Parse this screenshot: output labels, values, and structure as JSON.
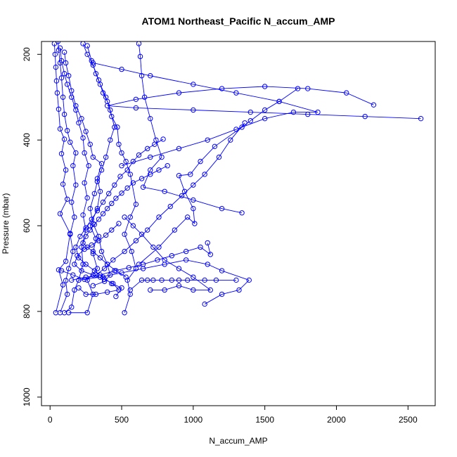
{
  "chart_data": {
    "type": "scatter",
    "title": "ATOM1 Northeast_Pacific N_accum_AMP",
    "xlabel": "N_accum_AMP",
    "ylabel": "Pressure (mbar)",
    "xlim": [
      -60,
      2690
    ],
    "ylim": [
      1020,
      170
    ],
    "y_inverted": true,
    "x_ticks": [
      "0",
      "500",
      "1000",
      "1500",
      "2000",
      "2500"
    ],
    "y_ticks": [
      "200",
      "400",
      "600",
      "800",
      "1000"
    ],
    "grid": false,
    "legend": "none",
    "marker": "open-circle",
    "colors": {
      "series": "#0000ff",
      "axis": "#000000",
      "background": "#ffffff"
    },
    "series": [
      {
        "points": [
          [
            40,
            803
          ],
          [
            90,
            738
          ],
          [
            60,
            703
          ],
          [
            110,
            683
          ],
          [
            140,
            618
          ],
          [
            70,
            572
          ],
          [
            120,
            538
          ],
          [
            90,
            503
          ],
          [
            110,
            470
          ],
          [
            80,
            432
          ],
          [
            100,
            398
          ],
          [
            70,
            374
          ],
          [
            60,
            328
          ],
          [
            50,
            290
          ],
          [
            45,
            262
          ],
          [
            40,
            230
          ],
          [
            35,
            200
          ],
          [
            30,
            175
          ]
        ]
      },
      {
        "points": [
          [
            70,
            803
          ],
          [
            120,
            760
          ],
          [
            110,
            728
          ],
          [
            130,
            700
          ],
          [
            160,
            660
          ],
          [
            140,
            620
          ],
          [
            170,
            580
          ],
          [
            150,
            545
          ],
          [
            180,
            505
          ],
          [
            160,
            460
          ],
          [
            180,
            430
          ],
          [
            140,
            405
          ],
          [
            120,
            378
          ],
          [
            100,
            340
          ],
          [
            90,
            300
          ],
          [
            80,
            255
          ],
          [
            70,
            220
          ],
          [
            60,
            190
          ],
          [
            55,
            170
          ]
        ]
      },
      {
        "points": [
          [
            100,
            803
          ],
          [
            150,
            790
          ],
          [
            170,
            750
          ],
          [
            200,
            727
          ],
          [
            230,
            690
          ],
          [
            220,
            650
          ],
          [
            250,
            610
          ],
          [
            230,
            575
          ],
          [
            260,
            535
          ],
          [
            240,
            500
          ],
          [
            270,
            460
          ],
          [
            240,
            430
          ],
          [
            230,
            395
          ],
          [
            200,
            360
          ],
          [
            180,
            330
          ],
          [
            150,
            300
          ],
          [
            120,
            270
          ],
          [
            100,
            245
          ],
          [
            80,
            215
          ],
          [
            70,
            185
          ]
        ]
      },
      {
        "points": [
          [
            130,
            803
          ],
          [
            260,
            803
          ],
          [
            300,
            760
          ],
          [
            260,
            727
          ],
          [
            330,
            700
          ],
          [
            300,
            665
          ],
          [
            320,
            630
          ],
          [
            280,
            600
          ],
          [
            330,
            560
          ],
          [
            350,
            520
          ],
          [
            330,
            490
          ],
          [
            360,
            455
          ],
          [
            300,
            440
          ],
          [
            280,
            410
          ],
          [
            250,
            380
          ],
          [
            220,
            350
          ],
          [
            180,
            320
          ],
          [
            150,
            285
          ],
          [
            130,
            250
          ],
          [
            110,
            220
          ],
          [
            100,
            195
          ]
        ]
      },
      {
        "points": [
          [
            520,
            803
          ],
          [
            560,
            760
          ],
          [
            540,
            727
          ],
          [
            600,
            700
          ],
          [
            570,
            660
          ],
          [
            520,
            620
          ],
          [
            560,
            580
          ],
          [
            600,
            550
          ],
          [
            560,
            480
          ],
          [
            530,
            450
          ],
          [
            500,
            430
          ],
          [
            480,
            410
          ],
          [
            470,
            370
          ],
          [
            430,
            345
          ],
          [
            400,
            310
          ],
          [
            370,
            290
          ],
          [
            340,
            260
          ],
          [
            300,
            225
          ],
          [
            260,
            200
          ],
          [
            230,
            175
          ]
        ]
      },
      {
        "points": [
          [
            560,
            750
          ],
          [
            640,
            727
          ],
          [
            680,
            727
          ],
          [
            720,
            727
          ],
          [
            780,
            727
          ],
          [
            850,
            727
          ],
          [
            900,
            727
          ],
          [
            960,
            727
          ],
          [
            1080,
            727
          ],
          [
            1160,
            727
          ],
          [
            1300,
            727
          ]
        ]
      },
      {
        "points": [
          [
            1080,
            783
          ],
          [
            1200,
            760
          ],
          [
            1320,
            750
          ],
          [
            1390,
            727
          ],
          [
            1200,
            705
          ],
          [
            1100,
            690
          ],
          [
            950,
            680
          ],
          [
            800,
            690
          ],
          [
            650,
            700
          ],
          [
            500,
            710
          ],
          [
            350,
            720
          ],
          [
            200,
            727
          ]
        ]
      },
      {
        "points": [
          [
            700,
            750
          ],
          [
            800,
            750
          ],
          [
            900,
            740
          ],
          [
            1000,
            750
          ],
          [
            1120,
            750
          ],
          [
            1000,
            720
          ],
          [
            900,
            700
          ],
          [
            800,
            680
          ],
          [
            720,
            650
          ],
          [
            640,
            620
          ],
          [
            580,
            600
          ],
          [
            520,
            580
          ]
        ]
      },
      {
        "points": [
          [
            620,
            690
          ],
          [
            760,
            650
          ],
          [
            870,
            610
          ],
          [
            960,
            580
          ],
          [
            1010,
            595
          ],
          [
            1000,
            560
          ],
          [
            940,
            520
          ],
          [
            900,
            483
          ],
          [
            980,
            480
          ],
          [
            1050,
            450
          ],
          [
            1150,
            415
          ],
          [
            1340,
            370
          ],
          [
            1400,
            355
          ],
          [
            1500,
            330
          ],
          [
            1600,
            310
          ],
          [
            1730,
            280
          ]
        ]
      },
      {
        "points": [
          [
            500,
            460
          ],
          [
            700,
            440
          ],
          [
            900,
            420
          ],
          [
            1100,
            400
          ],
          [
            1300,
            375
          ],
          [
            1500,
            350
          ],
          [
            1700,
            335
          ],
          [
            1870,
            335
          ],
          [
            1600,
            310
          ],
          [
            1300,
            290
          ],
          [
            1000,
            270
          ],
          [
            700,
            250
          ],
          [
            500,
            235
          ],
          [
            300,
            220
          ]
        ]
      },
      {
        "points": [
          [
            2590,
            350
          ],
          [
            2200,
            345
          ],
          [
            1800,
            340
          ],
          [
            1400,
            335
          ],
          [
            1000,
            330
          ],
          [
            600,
            325
          ],
          [
            400,
            320
          ],
          [
            600,
            305
          ],
          [
            900,
            290
          ],
          [
            1200,
            280
          ],
          [
            1500,
            275
          ],
          [
            1800,
            280
          ],
          [
            2070,
            290
          ],
          [
            2260,
            318
          ]
        ]
      },
      {
        "points": [
          [
            1340,
            570
          ],
          [
            1200,
            560
          ],
          [
            1000,
            540
          ],
          [
            800,
            520
          ],
          [
            650,
            510
          ],
          [
            700,
            470
          ],
          [
            780,
            440
          ],
          [
            740,
            400
          ],
          [
            700,
            350
          ],
          [
            660,
            300
          ],
          [
            640,
            250
          ],
          [
            630,
            205
          ],
          [
            620,
            175
          ]
        ]
      },
      {
        "points": [
          [
            150,
            727
          ],
          [
            250,
            720
          ],
          [
            350,
            715
          ],
          [
            450,
            705
          ],
          [
            550,
            698
          ],
          [
            650,
            690
          ],
          [
            750,
            680
          ],
          [
            850,
            670
          ],
          [
            950,
            660
          ],
          [
            1050,
            650
          ],
          [
            1120,
            667
          ],
          [
            1100,
            640
          ]
        ]
      },
      {
        "points": [
          [
            300,
            740
          ],
          [
            380,
            730
          ],
          [
            420,
            715
          ],
          [
            400,
            690
          ],
          [
            360,
            660
          ],
          [
            340,
            625
          ],
          [
            300,
            595
          ],
          [
            280,
            560
          ],
          [
            310,
            525
          ],
          [
            330,
            497
          ],
          [
            360,
            470
          ],
          [
            390,
            440
          ],
          [
            420,
            400
          ],
          [
            450,
            370
          ],
          [
            420,
            330
          ],
          [
            390,
            300
          ],
          [
            350,
            270
          ],
          [
            320,
            245
          ],
          [
            290,
            215
          ],
          [
            260,
            180
          ]
        ]
      },
      {
        "points": [
          [
            80,
            705
          ],
          [
            160,
            715
          ],
          [
            240,
            725
          ],
          [
            320,
            715
          ],
          [
            380,
            700
          ],
          [
            440,
            680
          ],
          [
            520,
            660
          ],
          [
            600,
            635
          ],
          [
            680,
            610
          ],
          [
            760,
            580
          ],
          [
            840,
            555
          ],
          [
            920,
            530
          ],
          [
            1000,
            505
          ],
          [
            1080,
            480
          ],
          [
            1180,
            440
          ],
          [
            1260,
            400
          ],
          [
            1360,
            360
          ]
        ]
      },
      {
        "points": [
          [
            460,
            765
          ],
          [
            500,
            745
          ],
          [
            430,
            735
          ],
          [
            370,
            720
          ],
          [
            310,
            705
          ],
          [
            250,
            690
          ],
          [
            200,
            675
          ],
          [
            180,
            650
          ],
          [
            210,
            625
          ],
          [
            250,
            605
          ],
          [
            290,
            585
          ],
          [
            330,
            565
          ],
          [
            370,
            545
          ],
          [
            410,
            525
          ],
          [
            450,
            505
          ],
          [
            490,
            485
          ],
          [
            540,
            470
          ],
          [
            580,
            450
          ],
          [
            620,
            435
          ],
          [
            680,
            420
          ],
          [
            730,
            410
          ],
          [
            790,
            398
          ]
        ]
      },
      {
        "points": [
          [
            200,
            745
          ],
          [
            250,
            760
          ],
          [
            320,
            760
          ],
          [
            400,
            755
          ],
          [
            480,
            750
          ],
          [
            440,
            735
          ],
          [
            380,
            725
          ],
          [
            300,
            715
          ],
          [
            220,
            705
          ],
          [
            170,
            690
          ],
          [
            190,
            670
          ],
          [
            240,
            655
          ],
          [
            290,
            645
          ],
          [
            340,
            635
          ],
          [
            390,
            622
          ],
          [
            430,
            610
          ],
          [
            480,
            595
          ]
        ]
      },
      {
        "points": [
          [
            530,
            720
          ],
          [
            460,
            705
          ],
          [
            400,
            690
          ],
          [
            350,
            675
          ],
          [
            300,
            660
          ],
          [
            260,
            650
          ],
          [
            230,
            640
          ],
          [
            250,
            625
          ],
          [
            280,
            610
          ],
          [
            310,
            597
          ],
          [
            340,
            585
          ],
          [
            370,
            572
          ],
          [
            400,
            560
          ],
          [
            430,
            548
          ],
          [
            460,
            536
          ],
          [
            500,
            524
          ],
          [
            540,
            512
          ],
          [
            580,
            500
          ],
          [
            640,
            490
          ],
          [
            700,
            480
          ],
          [
            760,
            470
          ],
          [
            820,
            460
          ]
        ]
      }
    ]
  }
}
